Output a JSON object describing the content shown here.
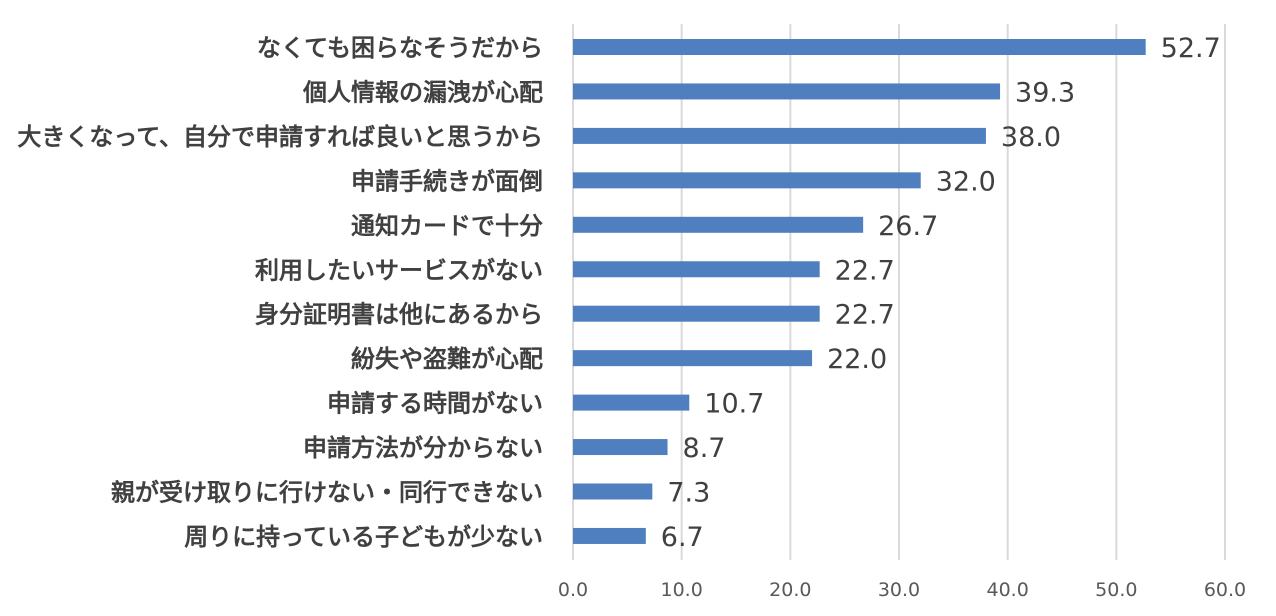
{
  "chart_data": {
    "type": "bar",
    "orientation": "horizontal",
    "title": "",
    "xlabel": "",
    "ylabel": "",
    "xlim": [
      0,
      60
    ],
    "ticks": [
      0,
      10,
      20,
      30,
      40,
      50,
      60
    ],
    "tick_labels": [
      "0.0",
      "10.0",
      "20.0",
      "30.0",
      "40.0",
      "50.0",
      "60.0"
    ],
    "grid": true,
    "legend": "none",
    "categories": [
      "なくても困らなそうだから",
      "個人情報の漏洩が心配",
      "大きくなって、自分で申請すれば良いと思うから",
      "申請手続きが面倒",
      "通知カードで十分",
      "利用したいサービスがない",
      "身分証明書は他にあるから",
      "紛失や盗難が心配",
      "申請する時間がない",
      "申請方法が分からない",
      "親が受け取りに行けない・同行できない",
      "周りに持っている子どもが少ない"
    ],
    "values": [
      52.7,
      39.3,
      38.0,
      32.0,
      26.7,
      22.7,
      22.7,
      22.0,
      10.7,
      8.7,
      7.3,
      6.7
    ],
    "value_labels": [
      "52.7",
      "39.3",
      "38.0",
      "32.0",
      "26.7",
      "22.7",
      "22.7",
      "22.0",
      "10.7",
      "8.7",
      "7.3",
      "6.7"
    ],
    "bar_color": "#4f7fbf",
    "grid_color": "#d9d9d9",
    "text_color": "#404040"
  }
}
